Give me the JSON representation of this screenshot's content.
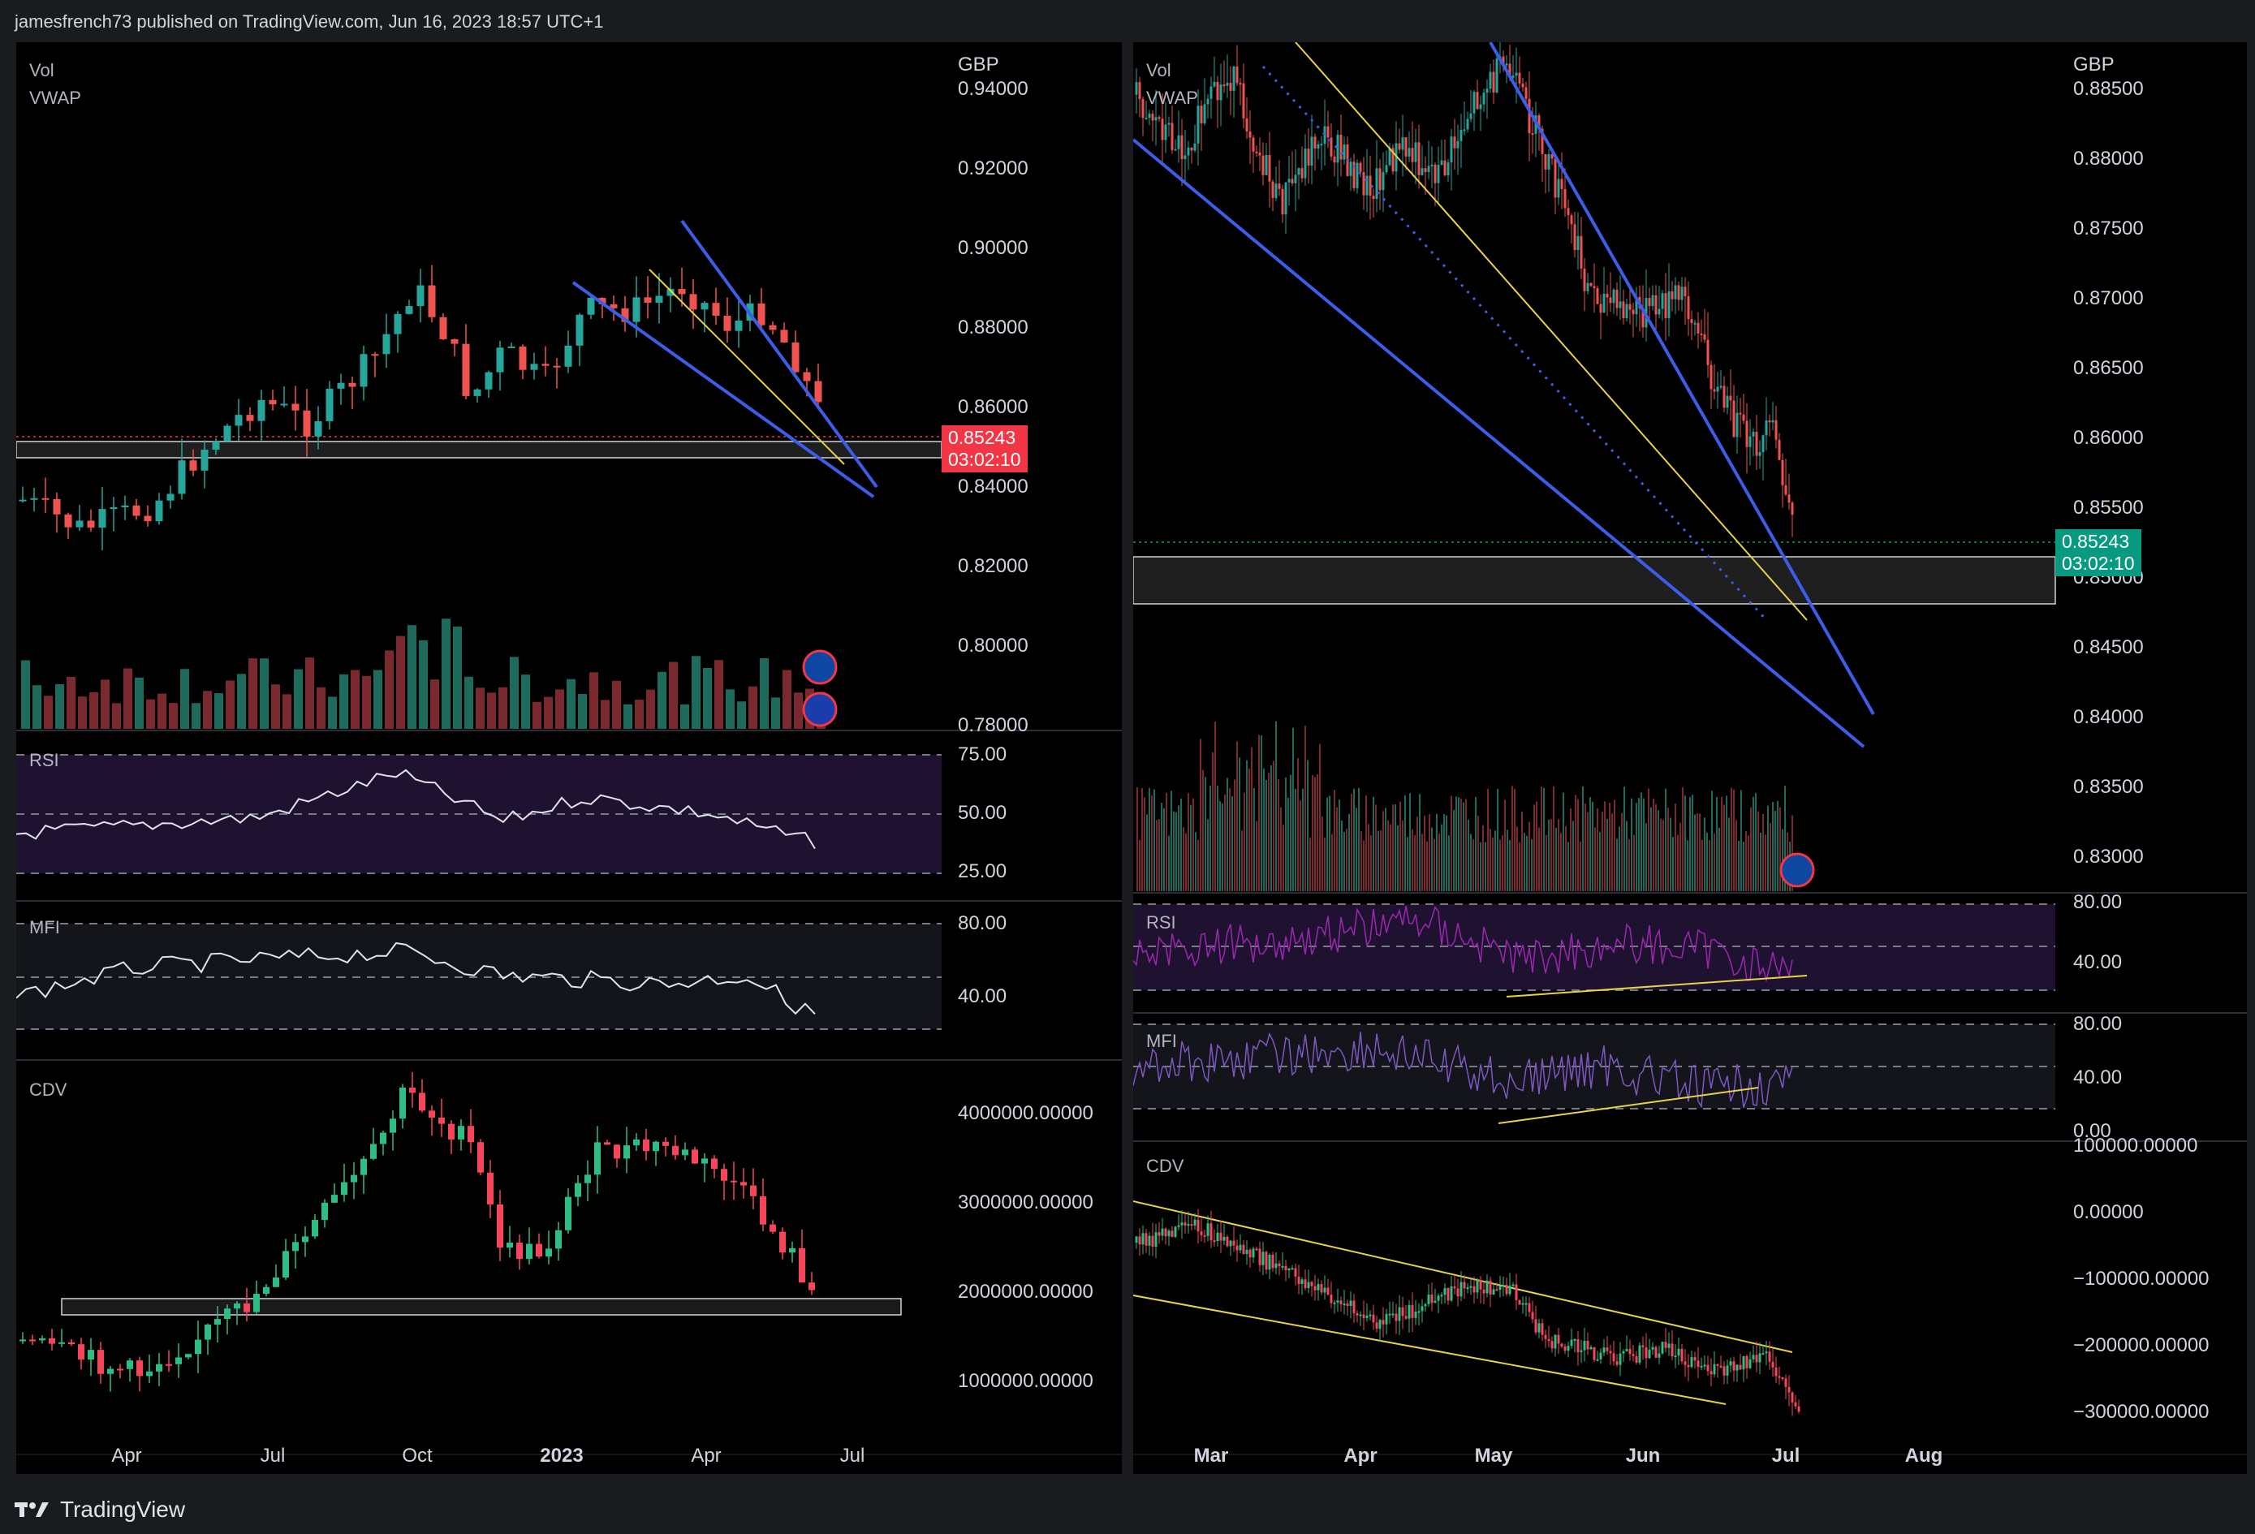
{
  "header": {
    "text": "jamesfrench73 published on TradingView.com, Jun 16, 2023 18:57 UTC+1"
  },
  "footer": {
    "brand": "TradingView"
  },
  "colors": {
    "up": "#26a69a",
    "down": "#ef5350",
    "bull": "#2ebd85",
    "bear": "#f6465d",
    "blue": "#3d5de8",
    "yellow": "#e6d34a",
    "badge_red": "#f23645",
    "badge_green": "#089981",
    "rsi_band": "#1e1230"
  },
  "left": {
    "indicators": {
      "vol": "Vol",
      "vwap": "VWAP",
      "rsi": "RSI",
      "mfi": "MFI",
      "cdv": "CDV"
    },
    "currency": "GBP",
    "price_ticks": [
      "0.94000",
      "0.92000",
      "0.90000",
      "0.88000",
      "0.86000",
      "0.84000",
      "0.82000",
      "0.80000",
      "0.78000"
    ],
    "rsi_ticks": [
      "75.00",
      "50.00",
      "25.00"
    ],
    "mfi_ticks": [
      "80.00",
      "40.00"
    ],
    "cdv_ticks": [
      "4000000.00000",
      "3000000.00000",
      "2000000.00000",
      "1000000.00000"
    ],
    "time_ticks": [
      {
        "label": "Apr",
        "bold": false
      },
      {
        "label": "Jul",
        "bold": false
      },
      {
        "label": "Oct",
        "bold": false
      },
      {
        "label": "2023",
        "bold": true
      },
      {
        "label": "Apr",
        "bold": false
      },
      {
        "label": "Jul",
        "bold": false
      }
    ],
    "last_price": "0.85243",
    "countdown": "03:02:10"
  },
  "right": {
    "indicators": {
      "vol": "Vol",
      "vwap": "VWAP",
      "rsi": "RSI",
      "mfi": "MFI",
      "cdv": "CDV"
    },
    "currency": "GBP",
    "price_ticks": [
      "0.88500",
      "0.88000",
      "0.87500",
      "0.87000",
      "0.86500",
      "0.86000",
      "0.85500",
      "0.85000",
      "0.84500",
      "0.84000",
      "0.83500",
      "0.83000"
    ],
    "rsi_ticks": [
      "80.00",
      "40.00"
    ],
    "mfi_ticks": [
      "80.00",
      "40.00",
      "0.00"
    ],
    "cdv_ticks": [
      "100000.00000",
      "0.00000",
      "−100000.00000",
      "−200000.00000",
      "−300000.00000"
    ],
    "time_ticks": [
      {
        "label": "Mar",
        "bold": true
      },
      {
        "label": "Apr",
        "bold": true
      },
      {
        "label": "May",
        "bold": true
      },
      {
        "label": "Jun",
        "bold": true
      },
      {
        "label": "Jul",
        "bold": true
      },
      {
        "label": "Aug",
        "bold": true
      }
    ],
    "last_price": "0.85243",
    "countdown": "03:02:10"
  }
}
